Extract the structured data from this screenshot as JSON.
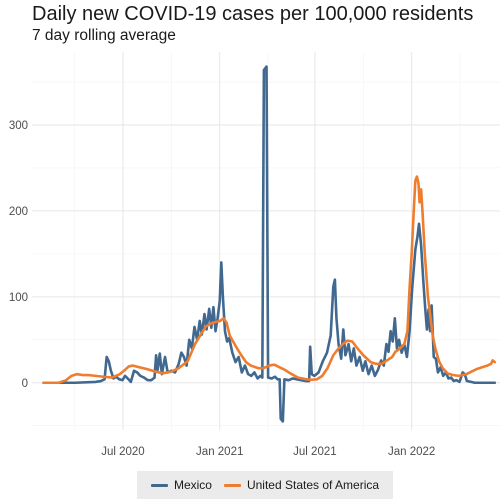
{
  "chart_data": {
    "type": "line",
    "title": "Daily new COVID-19 cases per 100,000 residents",
    "subtitle": "7 day rolling average",
    "xlabel": "",
    "ylabel": "",
    "x_tick_labels": [
      "Jul 2020",
      "Jan 2021",
      "Jul 2021",
      "Jan 2022"
    ],
    "x_tick_dates": [
      "2020-07-01",
      "2021-01-01",
      "2021-07-01",
      "2022-01-01"
    ],
    "y_ticks": [
      0,
      100,
      200,
      300
    ],
    "xlim": [
      "2020-01-10",
      "2022-06-18"
    ],
    "ylim": [
      -55,
      385
    ],
    "grid": true,
    "legend_position": "bottom",
    "series": [
      {
        "name": "Mexico",
        "color": "#41688f",
        "points": [
          [
            "2020-02-01",
            0
          ],
          [
            "2020-04-01",
            0
          ],
          [
            "2020-05-10",
            1
          ],
          [
            "2020-05-20",
            2
          ],
          [
            "2020-05-27",
            4
          ],
          [
            "2020-05-31",
            30
          ],
          [
            "2020-06-04",
            25
          ],
          [
            "2020-06-08",
            14
          ],
          [
            "2020-06-13",
            5
          ],
          [
            "2020-06-18",
            7
          ],
          [
            "2020-06-24",
            4
          ],
          [
            "2020-06-30",
            3
          ],
          [
            "2020-07-05",
            8
          ],
          [
            "2020-07-10",
            5
          ],
          [
            "2020-07-16",
            1
          ],
          [
            "2020-07-22",
            14
          ],
          [
            "2020-07-28",
            12
          ],
          [
            "2020-08-03",
            8
          ],
          [
            "2020-08-10",
            6
          ],
          [
            "2020-08-17",
            3
          ],
          [
            "2020-08-24",
            3
          ],
          [
            "2020-08-30",
            6
          ],
          [
            "2020-09-02",
            32
          ],
          [
            "2020-09-05",
            15
          ],
          [
            "2020-09-09",
            34
          ],
          [
            "2020-09-13",
            10
          ],
          [
            "2020-09-19",
            30
          ],
          [
            "2020-09-24",
            12
          ],
          [
            "2020-10-01",
            14
          ],
          [
            "2020-10-08",
            12
          ],
          [
            "2020-10-15",
            22
          ],
          [
            "2020-10-20",
            35
          ],
          [
            "2020-10-25",
            30
          ],
          [
            "2020-10-30",
            20
          ],
          [
            "2020-11-04",
            50
          ],
          [
            "2020-11-09",
            40
          ],
          [
            "2020-11-14",
            65
          ],
          [
            "2020-11-19",
            50
          ],
          [
            "2020-11-24",
            72
          ],
          [
            "2020-11-28",
            56
          ],
          [
            "2020-12-03",
            80
          ],
          [
            "2020-12-07",
            62
          ],
          [
            "2020-12-12",
            86
          ],
          [
            "2020-12-16",
            64
          ],
          [
            "2020-12-20",
            88
          ],
          [
            "2020-12-24",
            60
          ],
          [
            "2020-12-28",
            75
          ],
          [
            "2021-01-01",
            95
          ],
          [
            "2021-01-04",
            140
          ],
          [
            "2021-01-07",
            100
          ],
          [
            "2021-01-11",
            60
          ],
          [
            "2021-01-15",
            48
          ],
          [
            "2021-01-19",
            52
          ],
          [
            "2021-01-25",
            35
          ],
          [
            "2021-01-31",
            24
          ],
          [
            "2021-02-06",
            30
          ],
          [
            "2021-02-12",
            12
          ],
          [
            "2021-02-18",
            20
          ],
          [
            "2021-02-24",
            10
          ],
          [
            "2021-03-02",
            8
          ],
          [
            "2021-03-08",
            12
          ],
          [
            "2021-03-14",
            5
          ],
          [
            "2021-03-19",
            8
          ],
          [
            "2021-03-23",
            6
          ],
          [
            "2021-03-26",
            364
          ],
          [
            "2021-03-31",
            368
          ],
          [
            "2021-04-03",
            6
          ],
          [
            "2021-04-10",
            5
          ],
          [
            "2021-04-16",
            7
          ],
          [
            "2021-04-21",
            4
          ],
          [
            "2021-04-25",
            4
          ],
          [
            "2021-04-27",
            -42
          ],
          [
            "2021-05-01",
            -45
          ],
          [
            "2021-05-04",
            4
          ],
          [
            "2021-05-12",
            3
          ],
          [
            "2021-05-20",
            5
          ],
          [
            "2021-05-28",
            4
          ],
          [
            "2021-06-05",
            3
          ],
          [
            "2021-06-13",
            2
          ],
          [
            "2021-06-20",
            2
          ],
          [
            "2021-06-22",
            42
          ],
          [
            "2021-06-25",
            10
          ],
          [
            "2021-06-30",
            8
          ],
          [
            "2021-07-08",
            12
          ],
          [
            "2021-07-16",
            25
          ],
          [
            "2021-07-24",
            35
          ],
          [
            "2021-07-31",
            55
          ],
          [
            "2021-08-05",
            112
          ],
          [
            "2021-08-08",
            120
          ],
          [
            "2021-08-11",
            75
          ],
          [
            "2021-08-15",
            45
          ],
          [
            "2021-08-20",
            28
          ],
          [
            "2021-08-24",
            62
          ],
          [
            "2021-08-28",
            32
          ],
          [
            "2021-09-03",
            45
          ],
          [
            "2021-09-08",
            25
          ],
          [
            "2021-09-13",
            40
          ],
          [
            "2021-09-18",
            20
          ],
          [
            "2021-09-24",
            30
          ],
          [
            "2021-09-30",
            14
          ],
          [
            "2021-10-05",
            25
          ],
          [
            "2021-10-11",
            10
          ],
          [
            "2021-10-17",
            20
          ],
          [
            "2021-10-23",
            8
          ],
          [
            "2021-10-29",
            15
          ],
          [
            "2021-11-04",
            26
          ],
          [
            "2021-11-09",
            20
          ],
          [
            "2021-11-14",
            45
          ],
          [
            "2021-11-18",
            36
          ],
          [
            "2021-11-22",
            60
          ],
          [
            "2021-11-26",
            48
          ],
          [
            "2021-11-30",
            75
          ],
          [
            "2021-12-04",
            40
          ],
          [
            "2021-12-08",
            50
          ],
          [
            "2021-12-13",
            35
          ],
          [
            "2021-12-18",
            45
          ],
          [
            "2021-12-23",
            30
          ],
          [
            "2021-12-28",
            60
          ],
          [
            "2022-01-02",
            110
          ],
          [
            "2022-01-08",
            155
          ],
          [
            "2022-01-12",
            170
          ],
          [
            "2022-01-15",
            185
          ],
          [
            "2022-01-19",
            160
          ],
          [
            "2022-01-23",
            120
          ],
          [
            "2022-01-27",
            85
          ],
          [
            "2022-01-30",
            62
          ],
          [
            "2022-02-02",
            85
          ],
          [
            "2022-02-05",
            60
          ],
          [
            "2022-02-08",
            90
          ],
          [
            "2022-02-12",
            30
          ],
          [
            "2022-02-16",
            28
          ],
          [
            "2022-02-20",
            12
          ],
          [
            "2022-02-25",
            18
          ],
          [
            "2022-03-02",
            8
          ],
          [
            "2022-03-07",
            12
          ],
          [
            "2022-03-12",
            5
          ],
          [
            "2022-03-17",
            6
          ],
          [
            "2022-03-22",
            2
          ],
          [
            "2022-03-27",
            3
          ],
          [
            "2022-04-02",
            1
          ],
          [
            "2022-04-08",
            12
          ],
          [
            "2022-04-12",
            10
          ],
          [
            "2022-04-16",
            2
          ],
          [
            "2022-04-24",
            1
          ],
          [
            "2022-05-01",
            0
          ],
          [
            "2022-06-08",
            0
          ]
        ]
      },
      {
        "name": "United States of America",
        "color": "#ee7d2f",
        "points": [
          [
            "2020-02-01",
            0
          ],
          [
            "2020-03-01",
            0
          ],
          [
            "2020-03-15",
            3
          ],
          [
            "2020-03-25",
            8
          ],
          [
            "2020-04-05",
            10
          ],
          [
            "2020-04-15",
            9
          ],
          [
            "2020-04-25",
            9
          ],
          [
            "2020-05-10",
            8
          ],
          [
            "2020-05-25",
            7
          ],
          [
            "2020-06-10",
            6
          ],
          [
            "2020-06-25",
            10
          ],
          [
            "2020-07-05",
            15
          ],
          [
            "2020-07-12",
            19
          ],
          [
            "2020-07-20",
            20
          ],
          [
            "2020-08-01",
            18
          ],
          [
            "2020-08-15",
            16
          ],
          [
            "2020-09-01",
            13
          ],
          [
            "2020-09-15",
            11
          ],
          [
            "2020-10-01",
            13
          ],
          [
            "2020-10-15",
            17
          ],
          [
            "2020-11-01",
            25
          ],
          [
            "2020-11-15",
            45
          ],
          [
            "2020-11-25",
            55
          ],
          [
            "2020-12-05",
            65
          ],
          [
            "2020-12-12",
            68
          ],
          [
            "2020-12-20",
            70
          ],
          [
            "2021-01-02",
            72
          ],
          [
            "2021-01-08",
            75
          ],
          [
            "2021-01-14",
            70
          ],
          [
            "2021-01-20",
            55
          ],
          [
            "2021-02-01",
            42
          ],
          [
            "2021-02-10",
            33
          ],
          [
            "2021-02-20",
            24
          ],
          [
            "2021-03-01",
            20
          ],
          [
            "2021-03-15",
            17
          ],
          [
            "2021-03-25",
            17
          ],
          [
            "2021-04-05",
            20
          ],
          [
            "2021-04-15",
            21
          ],
          [
            "2021-04-25",
            18
          ],
          [
            "2021-05-05",
            15
          ],
          [
            "2021-05-15",
            11
          ],
          [
            "2021-05-30",
            6
          ],
          [
            "2021-06-15",
            4
          ],
          [
            "2021-06-25",
            3.5
          ],
          [
            "2021-07-05",
            4
          ],
          [
            "2021-07-15",
            8
          ],
          [
            "2021-07-25",
            17
          ],
          [
            "2021-08-05",
            32
          ],
          [
            "2021-08-15",
            40
          ],
          [
            "2021-08-25",
            46
          ],
          [
            "2021-09-01",
            49
          ],
          [
            "2021-09-10",
            48
          ],
          [
            "2021-09-20",
            40
          ],
          [
            "2021-10-01",
            32
          ],
          [
            "2021-10-15",
            24
          ],
          [
            "2021-10-25",
            22
          ],
          [
            "2021-11-05",
            22
          ],
          [
            "2021-11-15",
            26
          ],
          [
            "2021-11-25",
            30
          ],
          [
            "2021-12-01",
            36
          ],
          [
            "2021-12-10",
            40
          ],
          [
            "2021-12-18",
            45
          ],
          [
            "2021-12-24",
            60
          ],
          [
            "2021-12-28",
            110
          ],
          [
            "2022-01-01",
            150
          ],
          [
            "2022-01-05",
            200
          ],
          [
            "2022-01-08",
            235
          ],
          [
            "2022-01-11",
            240
          ],
          [
            "2022-01-14",
            232
          ],
          [
            "2022-01-16",
            210
          ],
          [
            "2022-01-19",
            225
          ],
          [
            "2022-01-22",
            195
          ],
          [
            "2022-01-26",
            150
          ],
          [
            "2022-02-01",
            100
          ],
          [
            "2022-02-05",
            80
          ],
          [
            "2022-02-10",
            55
          ],
          [
            "2022-02-15",
            40
          ],
          [
            "2022-02-22",
            25
          ],
          [
            "2022-03-01",
            17
          ],
          [
            "2022-03-10",
            11
          ],
          [
            "2022-03-20",
            9
          ],
          [
            "2022-04-01",
            8
          ],
          [
            "2022-04-15",
            10
          ],
          [
            "2022-04-25",
            13
          ],
          [
            "2022-05-05",
            16
          ],
          [
            "2022-05-15",
            18
          ],
          [
            "2022-05-25",
            20
          ],
          [
            "2022-06-01",
            22
          ],
          [
            "2022-06-04",
            26
          ],
          [
            "2022-06-08",
            24
          ]
        ]
      }
    ]
  }
}
